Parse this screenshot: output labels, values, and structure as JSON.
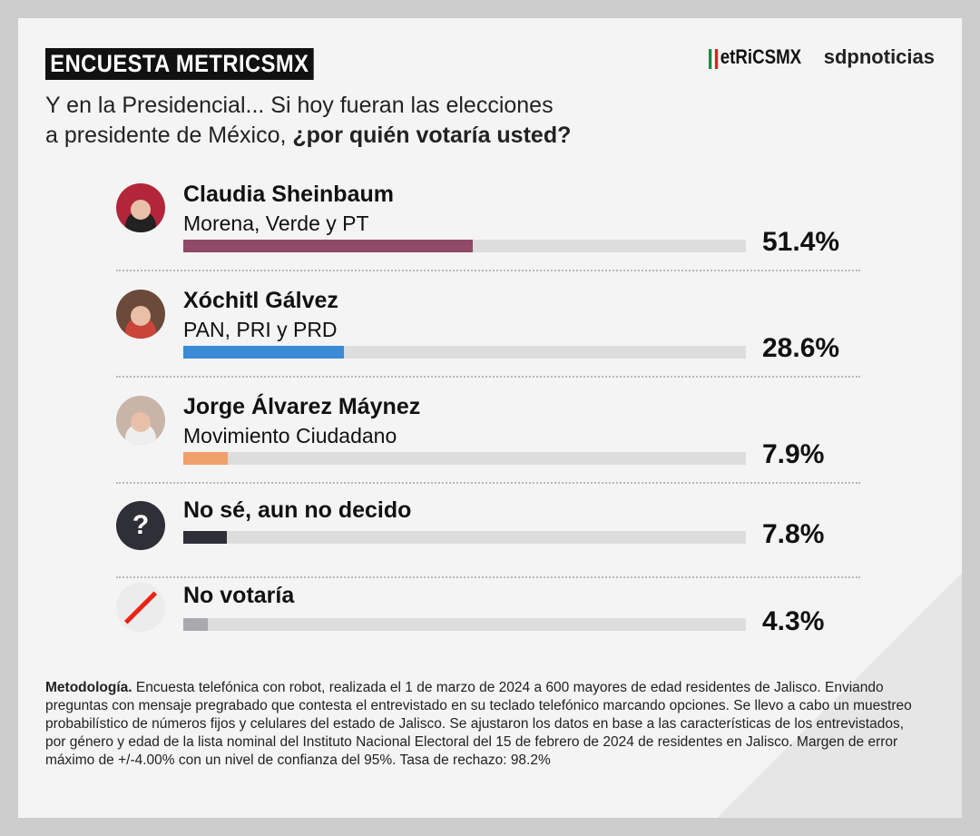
{
  "header": {
    "tag": "ENCUESTA METRICSMX",
    "logo_metrics": "METRICSMX",
    "logo_metrics_display": "etRiCSMX",
    "logo_sdp": "sdpnoticias"
  },
  "question": {
    "line1": "Y en la Presidencial... Si hoy fueran las elecciones",
    "line2_plain": "a presidente de México, ",
    "line2_bold": "¿por quién votaría usted?"
  },
  "chart_data": {
    "type": "bar",
    "orientation": "horizontal",
    "xlim": [
      0,
      100
    ],
    "categories": [
      "Claudia Sheinbaum",
      "Xóchitl Gálvez",
      "Jorge Álvarez Máynez",
      "No sé, aun no decido",
      "No votaría"
    ],
    "subtitles": [
      "Morena, Verde y PT",
      "PAN, PRI y PRD",
      "Movimiento Ciudadano",
      "",
      ""
    ],
    "values": [
      51.4,
      28.6,
      7.9,
      7.8,
      4.3
    ],
    "labels": [
      "51.4%",
      "28.6%",
      "7.9%",
      "7.8%",
      "4.3%"
    ],
    "colors": [
      "#8e4a66",
      "#3b8ad6",
      "#f0a06a",
      "#2f2f38",
      "#a9a9ae"
    ]
  },
  "methodology": {
    "label": "Metodología.",
    "text": " Encuesta telefónica con robot, realizada el 1 de marzo de 2024 a 600 mayores de edad residentes de Jalisco. Enviando preguntas con mensaje pregrabado que contesta el entrevistado en su teclado telefónico marcando opciones. Se llevo a cabo un muestreo probabilístico de números fijos y celulares del estado de Jalisco. Se ajustaron los datos en base a las características de los entrevistados, por género y edad de la lista nominal del Instituto Nacional Electoral del 15 de febrero de 2024 de residentes en Jalisco. Margen de error máximo de +/-4.00% con un nivel de confianza del 95%. Tasa de rechazo: 98.2%"
  }
}
